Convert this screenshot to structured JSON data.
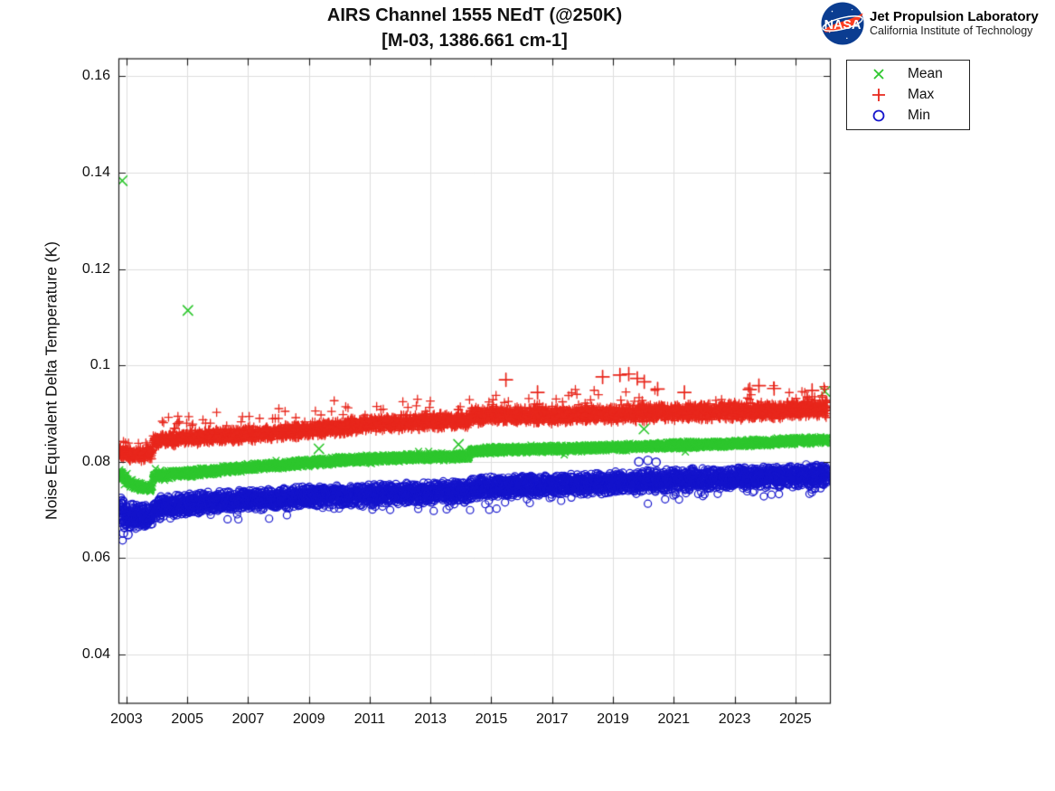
{
  "header": {
    "title_line1": "AIRS Channel 1555 NEdT (@250K)",
    "title_line2": "[M-03, 1386.661 cm-1]",
    "logo": {
      "org": "NASA",
      "line1": "Jet Propulsion Laboratory",
      "line2": "California Institute of Technology",
      "circle_color": "#0b3d91",
      "swoosh_color": "#fc3d21"
    }
  },
  "legend": {
    "items": [
      {
        "label": "Mean",
        "marker": "x",
        "color": "#2ec72e"
      },
      {
        "label": "Max",
        "marker": "+",
        "color": "#e8271c"
      },
      {
        "label": "Min",
        "marker": "o",
        "color": "#1414cc"
      }
    ]
  },
  "chart_data": {
    "type": "scatter",
    "title": "AIRS Channel 1555 NEdT (@250K)",
    "subtitle": "[M-03, 1386.661 cm-1]",
    "xlabel": "",
    "ylabel": "Noise Equivalent Delta Temperature (K)",
    "xlim": [
      2002.75,
      2026.15
    ],
    "ylim": [
      0.0299,
      0.1636
    ],
    "grid": true,
    "grid_color": "#dedede",
    "axis_color": "#1a1a1a",
    "legend_position": "outside-top-right",
    "x_ticks": [
      2003,
      2005,
      2007,
      2009,
      2011,
      2013,
      2015,
      2017,
      2019,
      2021,
      2023,
      2025
    ],
    "x_tick_labels": [
      "2003",
      "2005",
      "2007",
      "2009",
      "2011",
      "2013",
      "2015",
      "2017",
      "2019",
      "2021",
      "2023",
      "2025"
    ],
    "y_ticks": [
      0.16,
      0.14,
      0.12,
      0.1,
      0.08,
      0.06,
      0.04
    ],
    "y_tick_labels": [
      "0.16",
      "0.14",
      "0.12",
      "0.1",
      "0.08",
      "0.06",
      "0.04"
    ],
    "series": [
      {
        "name": "Mean",
        "marker": "x",
        "color": "#2ec72e",
        "seed": 11,
        "n_points": 4000,
        "t_range": [
          2002.77,
          2026.05
        ],
        "trend": [
          [
            2002.77,
            0.078
          ],
          [
            2002.9,
            0.0768
          ],
          [
            2003.1,
            0.0756
          ],
          [
            2003.5,
            0.0748
          ],
          [
            2003.84,
            0.0747
          ],
          [
            2003.88,
            0.077
          ],
          [
            2004.5,
            0.0774
          ],
          [
            2005,
            0.0776
          ],
          [
            2006,
            0.0782
          ],
          [
            2007,
            0.0788
          ],
          [
            2008,
            0.0793
          ],
          [
            2009,
            0.0798
          ],
          [
            2010,
            0.0802
          ],
          [
            2011,
            0.0806
          ],
          [
            2012,
            0.0808
          ],
          [
            2013,
            0.081
          ],
          [
            2014.25,
            0.0812
          ],
          [
            2014.32,
            0.0822
          ],
          [
            2015,
            0.0824
          ],
          [
            2016,
            0.0826
          ],
          [
            2017,
            0.0827
          ],
          [
            2018,
            0.0828
          ],
          [
            2019,
            0.083
          ],
          [
            2020,
            0.0832
          ],
          [
            2021,
            0.0834
          ],
          [
            2022,
            0.0836
          ],
          [
            2023,
            0.0838
          ],
          [
            2024,
            0.084
          ],
          [
            2025,
            0.0843
          ],
          [
            2026.05,
            0.0846
          ]
        ],
        "spread": [
          [
            2002.77,
            0.0008
          ],
          [
            2026.05,
            0.0007
          ]
        ],
        "tail": {
          "p": 0.012,
          "mag": 0.0013,
          "dir": 0
        },
        "outliers": [
          [
            2002.86,
            0.1383
          ],
          [
            2005.02,
            0.1114
          ],
          [
            2009.33,
            0.0827
          ],
          [
            2013.92,
            0.0836
          ],
          [
            2020.02,
            0.0868
          ],
          [
            2025.97,
            0.0946
          ]
        ]
      },
      {
        "name": "Max",
        "marker": "+",
        "color": "#e8271c",
        "seed": 22,
        "n_points": 4300,
        "t_range": [
          2002.77,
          2026.05
        ],
        "trend": [
          [
            2002.77,
            0.0828
          ],
          [
            2002.9,
            0.0818
          ],
          [
            2003.2,
            0.0814
          ],
          [
            2003.84,
            0.0816
          ],
          [
            2003.88,
            0.0843
          ],
          [
            2004.5,
            0.0847
          ],
          [
            2005,
            0.085
          ],
          [
            2006,
            0.0853
          ],
          [
            2007,
            0.0857
          ],
          [
            2008,
            0.0861
          ],
          [
            2009,
            0.0866
          ],
          [
            2010,
            0.0872
          ],
          [
            2011,
            0.0878
          ],
          [
            2012,
            0.0881
          ],
          [
            2013,
            0.0884
          ],
          [
            2014.25,
            0.0886
          ],
          [
            2014.32,
            0.0895
          ],
          [
            2015,
            0.0897
          ],
          [
            2016,
            0.0897
          ],
          [
            2017,
            0.0896
          ],
          [
            2018,
            0.0898
          ],
          [
            2019,
            0.09
          ],
          [
            2020,
            0.09
          ],
          [
            2021,
            0.0902
          ],
          [
            2022,
            0.0903
          ],
          [
            2023,
            0.0905
          ],
          [
            2024,
            0.0906
          ],
          [
            2025,
            0.0908
          ],
          [
            2026.05,
            0.091
          ]
        ],
        "spread": [
          [
            2002.77,
            0.0013
          ],
          [
            2010,
            0.0015
          ],
          [
            2026.05,
            0.0017
          ]
        ],
        "tail": {
          "p": 0.035,
          "mag": 0.0042,
          "dir": 1
        },
        "outliers": [
          [
            2015.48,
            0.097
          ],
          [
            2016.52,
            0.0944
          ],
          [
            2018.66,
            0.0976
          ],
          [
            2019.23,
            0.098
          ],
          [
            2019.52,
            0.0982
          ],
          [
            2019.8,
            0.0973
          ],
          [
            2020.03,
            0.0966
          ],
          [
            2020.47,
            0.0951
          ],
          [
            2021.35,
            0.0944
          ],
          [
            2023.5,
            0.095
          ],
          [
            2023.8,
            0.0958
          ],
          [
            2024.3,
            0.0952
          ],
          [
            2025.55,
            0.0948
          ]
        ]
      },
      {
        "name": "Min",
        "marker": "o",
        "color": "#1414cc",
        "seed": 33,
        "n_points": 5200,
        "t_range": [
          2002.77,
          2026.05
        ],
        "trend": [
          [
            2002.77,
            0.07
          ],
          [
            2002.9,
            0.0692
          ],
          [
            2003.1,
            0.0686
          ],
          [
            2003.5,
            0.0684
          ],
          [
            2003.84,
            0.0686
          ],
          [
            2003.92,
            0.0704
          ],
          [
            2004.5,
            0.0708
          ],
          [
            2005,
            0.0712
          ],
          [
            2006,
            0.0717
          ],
          [
            2007,
            0.0721
          ],
          [
            2008,
            0.0724
          ],
          [
            2009,
            0.0728
          ],
          [
            2010,
            0.073
          ],
          [
            2011,
            0.0732
          ],
          [
            2012,
            0.0734
          ],
          [
            2013,
            0.0736
          ],
          [
            2014.25,
            0.0738
          ],
          [
            2014.32,
            0.0745
          ],
          [
            2015,
            0.0748
          ],
          [
            2016,
            0.075
          ],
          [
            2017,
            0.0752
          ],
          [
            2018,
            0.0754
          ],
          [
            2019,
            0.0757
          ],
          [
            2020,
            0.076
          ],
          [
            2021,
            0.0762
          ],
          [
            2022,
            0.0764
          ],
          [
            2023,
            0.0766
          ],
          [
            2024,
            0.0768
          ],
          [
            2025,
            0.0771
          ],
          [
            2026.05,
            0.0774
          ]
        ],
        "spread": [
          [
            2002.77,
            0.0034
          ],
          [
            2003.3,
            0.0026
          ],
          [
            2003.9,
            0.002
          ],
          [
            2026.05,
            0.0021
          ]
        ],
        "tail": {
          "p": 0.03,
          "mag": 0.0028,
          "dir": -1
        },
        "outliers": [
          [
            2002.9,
            0.0652
          ],
          [
            2003.05,
            0.0649
          ],
          [
            2019.85,
            0.08
          ],
          [
            2020.15,
            0.0803
          ],
          [
            2020.42,
            0.0799
          ]
        ]
      }
    ]
  }
}
